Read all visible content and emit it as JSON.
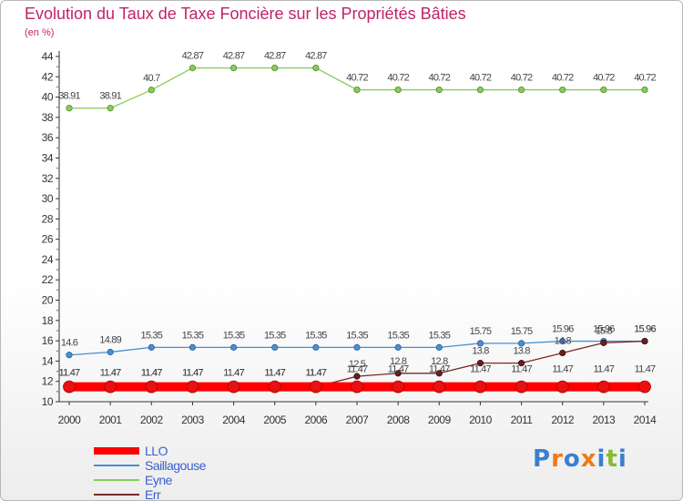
{
  "chart_data": {
    "type": "line",
    "title": "Evolution du Taux de Taxe Foncière sur les Propriétés Bâties",
    "subtitle": "(en %)",
    "x": [
      "2000",
      "2001",
      "2002",
      "2003",
      "2004",
      "2005",
      "2006",
      "2007",
      "2008",
      "2009",
      "2010",
      "2011",
      "2012",
      "2013",
      "2014"
    ],
    "ylim": [
      10,
      44
    ],
    "yticks": [
      10,
      12,
      14,
      16,
      18,
      20,
      22,
      24,
      26,
      28,
      30,
      32,
      34,
      36,
      38,
      40,
      42,
      44
    ],
    "grid": false,
    "series": [
      {
        "name": "LLO",
        "color": "#ff0000",
        "values": [
          11.47,
          11.47,
          11.47,
          11.47,
          11.47,
          11.47,
          11.47,
          11.47,
          11.47,
          11.47,
          11.47,
          11.47,
          11.47,
          11.47,
          11.47
        ],
        "labels": [
          "11.47",
          "11.47",
          "11.47",
          "11.47",
          "11.47",
          "11.47",
          "11.47",
          "11.47",
          "11.47",
          "11.47",
          "11.47",
          "11.47",
          "11.47",
          "11.47",
          "11.47"
        ]
      },
      {
        "name": "Saillagouse",
        "color": "#4a8fd0",
        "values": [
          14.6,
          14.89,
          15.35,
          15.35,
          15.35,
          15.35,
          15.35,
          15.35,
          15.35,
          15.35,
          15.75,
          15.75,
          15.96,
          15.96,
          15.96
        ],
        "labels": [
          "14.6",
          "14.89",
          "15.35",
          "15.35",
          "15.35",
          "15.35",
          "15.35",
          "15.35",
          "15.35",
          "15.35",
          "15.75",
          "15.75",
          "15.96",
          "15.96",
          "15.96"
        ]
      },
      {
        "name": "Eyne",
        "color": "#88cc55",
        "values": [
          38.91,
          38.91,
          40.7,
          42.87,
          42.87,
          42.87,
          42.87,
          40.72,
          40.72,
          40.72,
          40.72,
          40.72,
          40.72,
          40.72,
          40.72
        ],
        "labels": [
          "38.91",
          "38.91",
          "40.7",
          "42.87",
          "42.87",
          "42.87",
          "42.87",
          "40.72",
          "40.72",
          "40.72",
          "40.72",
          "40.72",
          "40.72",
          "40.72",
          "40.72"
        ]
      },
      {
        "name": "Err",
        "color": "#7a2a2a",
        "values": [
          11.47,
          11.47,
          11.47,
          11.47,
          11.47,
          11.47,
          11.47,
          12.5,
          12.8,
          12.8,
          13.8,
          13.8,
          14.8,
          15.8,
          15.96
        ],
        "labels": [
          "11.47",
          "11.47",
          "11.47",
          "11.47",
          "11.47",
          "11.47",
          "11.47",
          "12.5",
          "12.8",
          "12.8",
          "13.8",
          "13.8",
          "14.8",
          "15.8",
          "15.96"
        ]
      }
    ]
  },
  "legend": {
    "items": [
      {
        "label": "LLO",
        "color": "#ff0000"
      },
      {
        "label": "Saillagouse",
        "color": "#4a8fd0"
      },
      {
        "label": "Eyne",
        "color": "#88cc55"
      },
      {
        "label": "Err",
        "color": "#7a2a2a"
      }
    ]
  },
  "logo": {
    "text": "Proxiti",
    "letters": [
      "P",
      "r",
      "o",
      "x",
      "i",
      "t",
      "i"
    ],
    "colors": [
      "#3a7fd0",
      "#ee7a1a",
      "#3a7fd0",
      "#ee7a1a",
      "#3a7fd0",
      "#88bb33",
      "#3a7fd0"
    ]
  }
}
